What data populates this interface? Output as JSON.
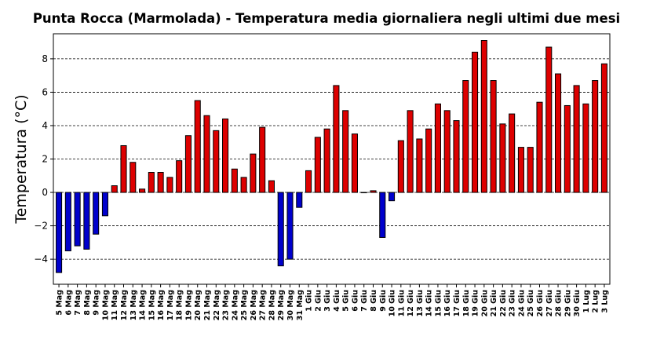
{
  "chart_data": {
    "type": "bar",
    "title": "Punta Rocca (Marmolada) - Temperatura media giornaliera negli ultimi due mesi",
    "xlabel": "",
    "ylabel": "Temperatura (°C)",
    "ylim": [
      -5.5,
      9.5
    ],
    "yticks": [
      -4,
      -2,
      0,
      2,
      4,
      6,
      8
    ],
    "ytick_labels": [
      "−4",
      "−2",
      "0",
      "2",
      "4",
      "6",
      "8"
    ],
    "grid": "horizontal dashed",
    "colors": {
      "positive": "#dd0000",
      "negative": "#0000cc",
      "edge": "#000000"
    },
    "categories": [
      "5 Mag",
      "6 Mag",
      "7 Mag",
      "8 Mag",
      "9 Mag",
      "10 Mag",
      "11 Mag",
      "12 Mag",
      "13 Mag",
      "14 Mag",
      "15 Mag",
      "16 Mag",
      "17 Mag",
      "18 Mag",
      "19 Mag",
      "20 Mag",
      "21 Mag",
      "22 Mag",
      "23 Mag",
      "24 Mag",
      "25 Mag",
      "26 Mag",
      "27 Mag",
      "28 Mag",
      "29 Mag",
      "30 Mag",
      "31 Mag",
      "1 Giu",
      "2 Giu",
      "3 Giu",
      "4 Giu",
      "5 Giu",
      "6 Giu",
      "7 Giu",
      "8 Giu",
      "9 Giu",
      "10 Giu",
      "11 Giu",
      "12 Giu",
      "13 Giu",
      "14 Giu",
      "15 Giu",
      "16 Giu",
      "17 Giu",
      "18 Giu",
      "19 Giu",
      "20 Giu",
      "21 Giu",
      "22 Giu",
      "23 Giu",
      "24 Giu",
      "25 Giu",
      "26 Giu",
      "27 Giu",
      "28 Giu",
      "29 Giu",
      "30 Giu",
      "1 Lug",
      "2 Lug",
      "3 Lug"
    ],
    "values": [
      -4.8,
      -3.5,
      -3.2,
      -3.4,
      -2.5,
      -1.4,
      0.4,
      2.8,
      1.8,
      0.2,
      1.2,
      1.2,
      0.9,
      1.9,
      3.4,
      5.5,
      4.6,
      3.7,
      4.4,
      1.4,
      0.9,
      2.3,
      3.9,
      0.7,
      -4.4,
      -4.0,
      -0.9,
      1.3,
      3.3,
      3.8,
      6.4,
      4.9,
      3.5,
      0.0,
      0.1,
      -2.7,
      -0.5,
      3.1,
      4.9,
      3.2,
      3.8,
      5.3,
      4.9,
      4.3,
      6.7,
      8.4,
      9.1,
      6.7,
      4.1,
      4.7,
      2.7,
      2.7,
      5.4,
      8.7,
      7.1,
      5.2,
      6.4,
      5.3,
      6.7,
      7.7
    ]
  }
}
